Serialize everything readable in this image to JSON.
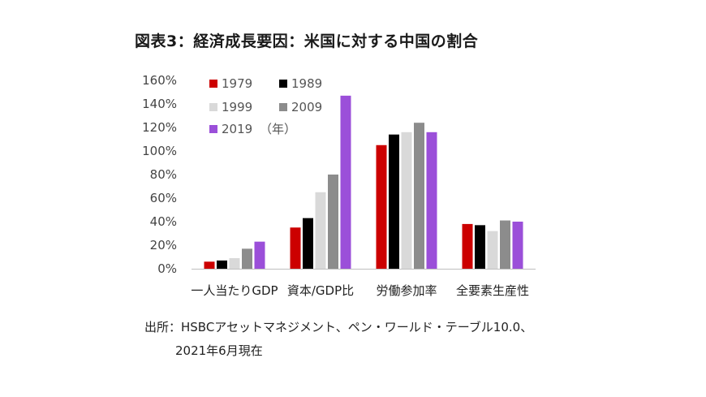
{
  "title": "図表3：経済成長要因：米国に対する中国の割合",
  "chart_data": {
    "type": "bar",
    "title": "図表3：経済成長要因：米国に対する中国の割合",
    "categories": [
      "一人当たりGDP",
      "資本/GDP比",
      "労働参加率",
      "全要素生産性"
    ],
    "series": [
      {
        "name": "1979",
        "color": "#cc0000",
        "values": [
          6,
          35,
          105,
          38
        ]
      },
      {
        "name": "1989",
        "color": "#000000",
        "values": [
          7,
          43,
          114,
          37
        ]
      },
      {
        "name": "1999",
        "color": "#d9d9d9",
        "values": [
          9,
          65,
          116,
          32
        ]
      },
      {
        "name": "2009",
        "color": "#8c8c8c",
        "values": [
          17,
          80,
          124,
          41
        ]
      },
      {
        "name": "2019",
        "color": "#9b4fd9",
        "values": [
          23,
          147,
          116,
          40
        ]
      }
    ],
    "legend_suffix": "（年）",
    "yticks": [
      "0%",
      "20%",
      "40%",
      "60%",
      "80%",
      "100%",
      "120%",
      "140%",
      "160%"
    ],
    "ylim": [
      0,
      160
    ],
    "xlabel": "",
    "ylabel": ""
  },
  "source": {
    "line1": "出所：HSBCアセットマネジメント、ペン・ワールド・テーブル10.0、",
    "line2": "2021年6月現在"
  }
}
